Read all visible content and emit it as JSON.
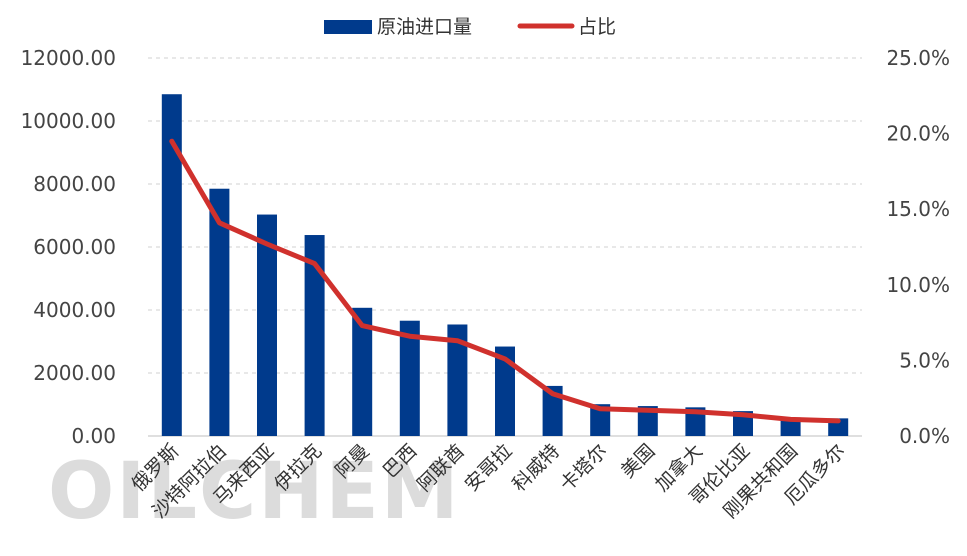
{
  "watermark": "OILCHEM",
  "legend": {
    "position": "top-center",
    "bar_label": "原油进口量",
    "line_label": "占比"
  },
  "colors": {
    "bar": "#003A8C",
    "line": "#D0312D",
    "grid": "#d0d0d0"
  },
  "chart_data": {
    "type": "bar",
    "categories": [
      "俄罗斯",
      "沙特阿拉伯",
      "马来西亚",
      "伊拉克",
      "阿曼",
      "巴西",
      "阿联酋",
      "安哥拉",
      "科威特",
      "卡塔尔",
      "美国",
      "加拿大",
      "哥伦比亚",
      "刚果共和国",
      "厄瓜多尔"
    ],
    "series": [
      {
        "name": "原油进口量",
        "type": "bar",
        "axis": "left",
        "values": [
          10850,
          7850,
          7030,
          6380,
          4070,
          3660,
          3540,
          2840,
          1590,
          1010,
          950,
          910,
          790,
          590,
          560
        ]
      },
      {
        "name": "占比",
        "type": "line",
        "axis": "right",
        "values": [
          19.5,
          14.1,
          12.7,
          11.4,
          7.3,
          6.6,
          6.3,
          5.1,
          2.8,
          1.8,
          1.7,
          1.6,
          1.4,
          1.1,
          1.0
        ]
      }
    ],
    "y_left": {
      "min": 0,
      "max": 12000,
      "step": 2000,
      "tick_labels": [
        "0.00",
        "2000.00",
        "4000.00",
        "6000.00",
        "8000.00",
        "10000.00",
        "12000.00"
      ]
    },
    "y_right": {
      "min": 0,
      "max": 25,
      "step": 5,
      "tick_labels": [
        "0.0%",
        "5.0%",
        "10.0%",
        "15.0%",
        "20.0%",
        "25.0%"
      ]
    },
    "grid": true
  }
}
